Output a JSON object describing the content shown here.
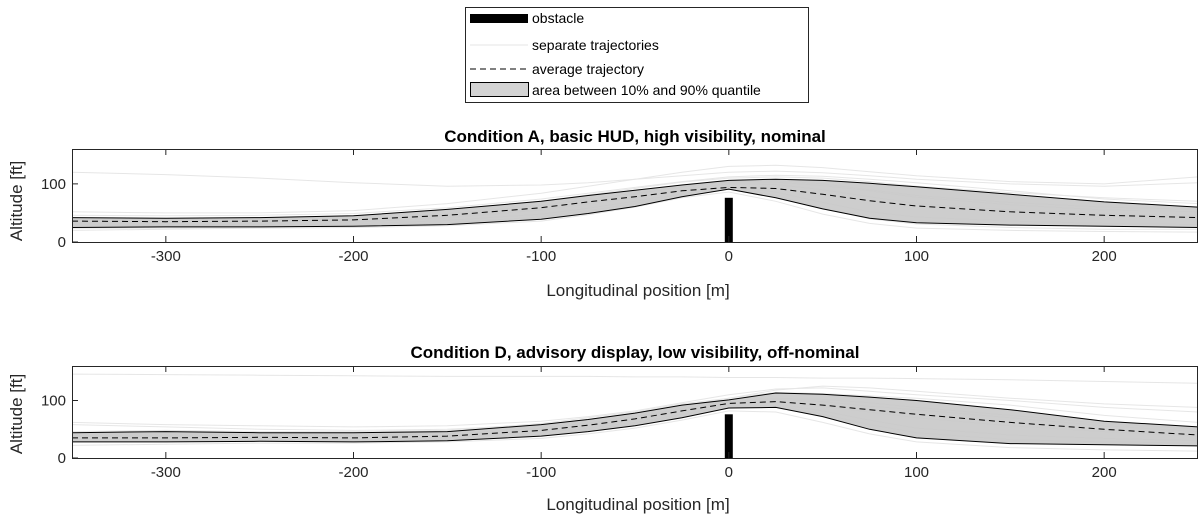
{
  "legend": {
    "entries": [
      {
        "key": "obstacle",
        "label": "obstacle",
        "style": "bar",
        "color": "#000000"
      },
      {
        "key": "separate",
        "label": "separate trajectories",
        "style": "light-line",
        "color": "#e6e6e6"
      },
      {
        "key": "average",
        "label": "average trajectory",
        "style": "dashed",
        "color": "#000000"
      },
      {
        "key": "area",
        "label": "area between 10% and 90% quantile",
        "style": "patch",
        "color": "#d3d3d3"
      }
    ]
  },
  "chart_data": [
    {
      "type": "line",
      "title": "Condition A, basic HUD, high visibility, nominal",
      "xlabel": "Longitudinal position [m]",
      "ylabel": "Altitude [ft]",
      "xlim": [
        -350,
        250
      ],
      "ylim": [
        0,
        160
      ],
      "xticks": [
        -300,
        -200,
        -100,
        0,
        100,
        200
      ],
      "yticks": [
        0,
        100
      ],
      "obstacle": {
        "x": 0,
        "height": 76
      },
      "x": [
        -350,
        -300,
        -250,
        -200,
        -150,
        -100,
        -75,
        -50,
        -25,
        0,
        25,
        50,
        75,
        100,
        150,
        200,
        250
      ],
      "series": [
        {
          "name": "average trajectory",
          "values": [
            36,
            35,
            36,
            38,
            46,
            59,
            69,
            78,
            88,
            94,
            92,
            82,
            71,
            62,
            52,
            46,
            42
          ]
        },
        {
          "name": "10% quantile",
          "values": [
            25,
            26,
            26,
            27,
            30,
            39,
            49,
            61,
            78,
            91,
            76,
            57,
            41,
            33,
            29,
            27,
            25
          ]
        },
        {
          "name": "90% quantile",
          "values": [
            42,
            41,
            42,
            45,
            56,
            70,
            80,
            89,
            98,
            106,
            108,
            106,
            101,
            95,
            82,
            69,
            60
          ]
        }
      ],
      "separate_trajectories": [
        [
          20,
          22,
          24,
          25,
          28,
          36,
          47,
          60,
          76,
          86,
          70,
          48,
          32,
          24,
          20,
          18,
          17
        ],
        [
          46,
          45,
          46,
          49,
          59,
          74,
          84,
          94,
          104,
          112,
          115,
          113,
          108,
          102,
          88,
          74,
          66
        ],
        [
          120,
          116,
          110,
          102,
          96,
          98,
          102,
          108,
          114,
          120,
          122,
          119,
          114,
          108,
          100,
          96,
          102
        ],
        [
          30,
          29,
          31,
          34,
          42,
          55,
          66,
          76,
          90,
          100,
          99,
          90,
          78,
          66,
          55,
          48,
          44
        ],
        [
          34,
          34,
          36,
          38,
          48,
          63,
          73,
          84,
          95,
          103,
          103,
          97,
          88,
          77,
          64,
          55,
          52
        ],
        [
          28,
          28,
          29,
          31,
          37,
          48,
          58,
          70,
          83,
          95,
          86,
          68,
          52,
          43,
          36,
          32,
          30
        ],
        [
          38,
          38,
          40,
          44,
          55,
          70,
          81,
          92,
          103,
          110,
          112,
          110,
          104,
          96,
          85,
          76,
          70
        ],
        [
          24,
          24,
          26,
          28,
          33,
          43,
          54,
          66,
          82,
          96,
          80,
          58,
          40,
          31,
          25,
          22,
          22
        ],
        [
          52,
          50,
          50,
          54,
          66,
          84,
          96,
          108,
          120,
          130,
          132,
          128,
          121,
          114,
          104,
          100,
          112
        ],
        [
          32,
          33,
          34,
          36,
          44,
          57,
          69,
          82,
          94,
          104,
          106,
          100,
          90,
          80,
          68,
          60,
          56
        ]
      ]
    },
    {
      "type": "line",
      "title": "Condition D, advisory display, low visibility, off-nominal",
      "xlabel": "Longitudinal position [m]",
      "ylabel": "Altitude [ft]",
      "xlim": [
        -350,
        250
      ],
      "ylim": [
        0,
        160
      ],
      "xticks": [
        -300,
        -200,
        -100,
        0,
        100,
        200
      ],
      "yticks": [
        0,
        100
      ],
      "obstacle": {
        "x": 0,
        "height": 76
      },
      "x": [
        -350,
        -300,
        -250,
        -200,
        -150,
        -100,
        -75,
        -50,
        -25,
        0,
        25,
        50,
        75,
        100,
        150,
        200,
        250
      ],
      "series": [
        {
          "name": "average trajectory",
          "values": [
            35,
            35,
            36,
            35,
            38,
            48,
            57,
            68,
            82,
            95,
            98,
            92,
            84,
            76,
            62,
            50,
            40
          ]
        },
        {
          "name": "10% quantile",
          "values": [
            28,
            28,
            29,
            28,
            30,
            38,
            46,
            56,
            70,
            87,
            88,
            72,
            50,
            35,
            25,
            23,
            21
          ]
        },
        {
          "name": "90% quantile",
          "values": [
            44,
            46,
            44,
            44,
            46,
            58,
            67,
            78,
            92,
            101,
            113,
            111,
            106,
            100,
            84,
            64,
            54
          ]
        }
      ],
      "separate_trajectories": [
        [
          146,
          145,
          144,
          143,
          142,
          142,
          142,
          141,
          141,
          140,
          140,
          139,
          139,
          138,
          136,
          133,
          130
        ],
        [
          58,
          54,
          50,
          48,
          50,
          58,
          67,
          78,
          90,
          104,
          118,
          125,
          122,
          116,
          104,
          94,
          88
        ],
        [
          22,
          24,
          26,
          26,
          28,
          34,
          42,
          52,
          66,
          82,
          80,
          62,
          42,
          28,
          18,
          14,
          12
        ],
        [
          40,
          40,
          40,
          39,
          42,
          52,
          61,
          72,
          86,
          98,
          104,
          102,
          96,
          88,
          74,
          60,
          50
        ],
        [
          32,
          32,
          33,
          32,
          35,
          44,
          52,
          62,
          76,
          92,
          94,
          82,
          66,
          52,
          40,
          34,
          30
        ],
        [
          36,
          36,
          37,
          36,
          39,
          50,
          59,
          70,
          84,
          96,
          102,
          98,
          90,
          84,
          70,
          56,
          46
        ],
        [
          30,
          30,
          30,
          30,
          32,
          40,
          48,
          60,
          74,
          90,
          92,
          76,
          58,
          44,
          32,
          28,
          26
        ],
        [
          46,
          48,
          46,
          46,
          48,
          60,
          70,
          80,
          94,
          104,
          114,
          112,
          108,
          104,
          92,
          74,
          62
        ],
        [
          62,
          58,
          56,
          54,
          56,
          64,
          72,
          82,
          96,
          110,
          120,
          122,
          116,
          110,
          100,
          88,
          80
        ],
        [
          34,
          34,
          35,
          34,
          36,
          46,
          55,
          66,
          80,
          94,
          97,
          90,
          80,
          70,
          56,
          46,
          38
        ]
      ]
    }
  ]
}
